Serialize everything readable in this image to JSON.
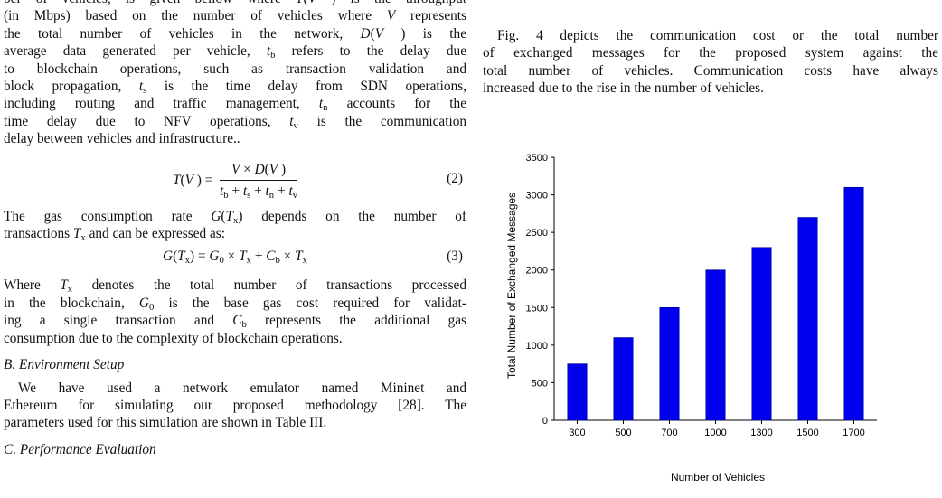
{
  "left": {
    "p1_lines": [
      "ber of vehicles, is given bellow where T(V) is the throughput",
      "(in Mbps) based on the number of vehicles where V represents",
      "the total number of vehicles in the network, D(V) is the",
      "average data generated per vehicle, t_b refers to the delay due",
      "to blockchain operations, such as transaction validation and",
      "block propagation, t_s is the time delay from SDN operations,",
      "including routing and traffic management, t_n accounts for the",
      "time delay due to NFV operations, t_v is the communication",
      "delay between vehicles and infrastructure.."
    ],
    "eq2_lhs": "T(V) =",
    "eq2_num": "V × D(V)",
    "eq2_den": "t_b + t_s + t_n + t_v",
    "eq2_number": "(2)",
    "p2_lines": [
      "The gas consumption rate G(T_x) depends on the number of",
      "transactions T_x and can be expressed as:"
    ],
    "eq3": "G(T_x) = G_0 × T_x + C_b × T_x",
    "eq3_number": "(3)",
    "p3_lines": [
      "Where T_x denotes the total number of transactions processed",
      "in the blockchain, G_0 is the base gas cost required for validat-",
      "ing a single transaction and C_b represents the additional gas",
      "consumption due to the complexity of blockchain operations."
    ],
    "section_b": "B. Environment Setup",
    "p4_lines": [
      "We have used a network emulator named Mininet and",
      "Ethereum for simulating our proposed methodology [28]. The",
      "parameters used for this simulation are shown in Table III."
    ],
    "section_c": "C. Performance Evaluation"
  },
  "right": {
    "p1_lines": [
      "Fig. 4 depicts the communication cost or the total number",
      "of exchanged messages for the proposed system against the",
      "total number of vehicles. Communication costs have always",
      "increased due to the rise in the number of vehicles."
    ]
  },
  "chart_data": {
    "type": "bar",
    "categories": [
      "300",
      "500",
      "700",
      "1000",
      "1300",
      "1500",
      "1700"
    ],
    "values": [
      750,
      1100,
      1500,
      2000,
      2300,
      2700,
      3100
    ],
    "xlabel": "Number of Vehicles",
    "ylabel": "Total Number of Exchanged Messages",
    "ylim": [
      0,
      3500
    ],
    "yticks": [
      "0",
      "500",
      "1000",
      "1500",
      "2000",
      "2500",
      "3000",
      "3500"
    ],
    "bar_color": "#0000ee",
    "grid": false
  }
}
